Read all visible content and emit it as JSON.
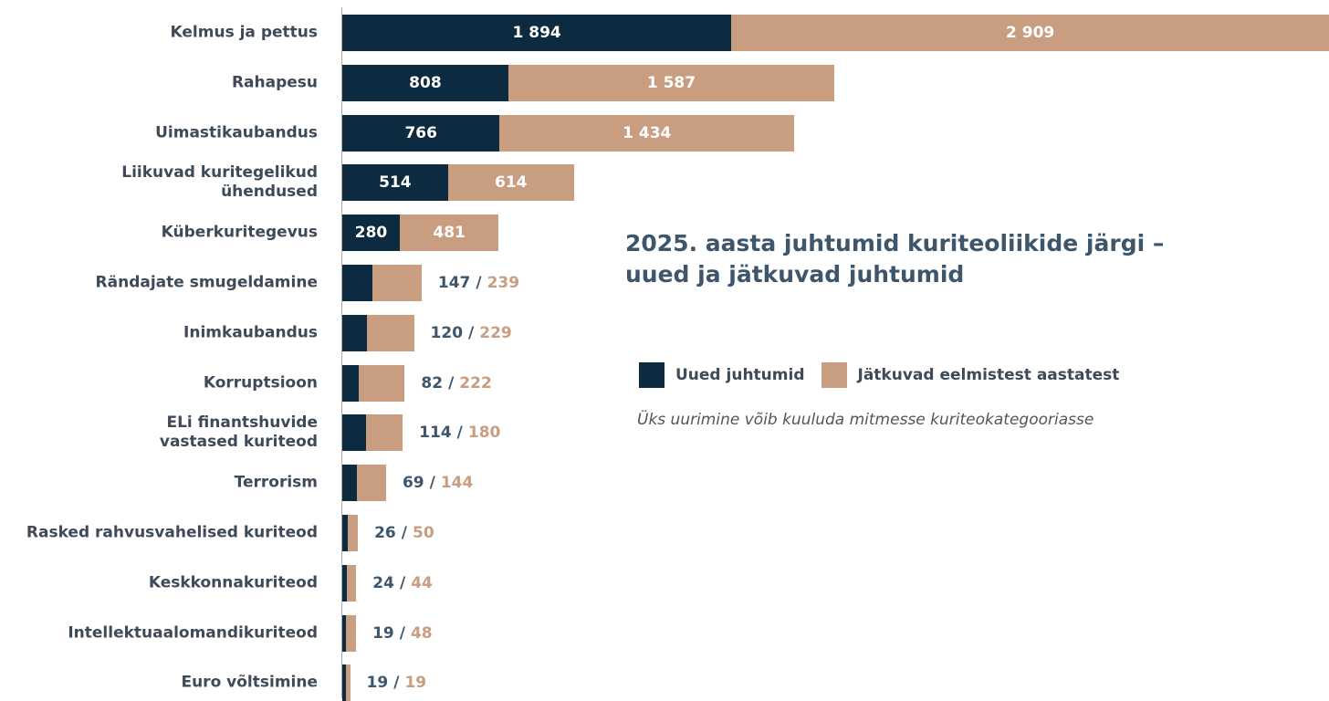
{
  "chart_data": {
    "type": "stacked_bar_horizontal",
    "title": "2025. aasta juhtumid kuriteoliikide järgi –\nuued ja jätkuvad juhtumid",
    "note": "Üks uurimine võib kuuluda mitmesse kuriteokategooriasse",
    "label_separator": "/",
    "categories": [
      "Kelmus ja pettus",
      "Rahapesu",
      "Uimastikaubandus",
      "Liikuvad kuritegelikud\nühendused",
      "Küberkuritegevus",
      "Rändajate smugeldamine",
      "Inimkaubandus",
      "Korruptsioon",
      "ELi finantshuvide\nvastased kuriteod",
      "Terrorism",
      "Rasked rahvusvahelised kuriteod",
      "Keskkonnakuriteod",
      "Intellektuaalomandikuriteod",
      "Euro võltsimine"
    ],
    "series": [
      {
        "name": "Uued juhtumid",
        "color": "#0d2b40",
        "values": [
          1894,
          808,
          766,
          514,
          280,
          147,
          120,
          82,
          114,
          69,
          26,
          24,
          19,
          19
        ],
        "value_labels": [
          "1 894",
          "808",
          "766",
          "514",
          "280",
          "147",
          "120",
          "82",
          "114",
          "69",
          "26",
          "24",
          "19",
          "19"
        ]
      },
      {
        "name": "Jätkuvad eelmistest aastatest",
        "color": "#c89d80",
        "values": [
          2909,
          1587,
          1434,
          614,
          481,
          239,
          229,
          222,
          180,
          144,
          50,
          44,
          48,
          19
        ],
        "value_labels": [
          "2 909",
          "1 587",
          "1 434",
          "614",
          "481",
          "239",
          "229",
          "222",
          "180",
          "144",
          "50",
          "44",
          "48",
          "19"
        ]
      }
    ]
  }
}
